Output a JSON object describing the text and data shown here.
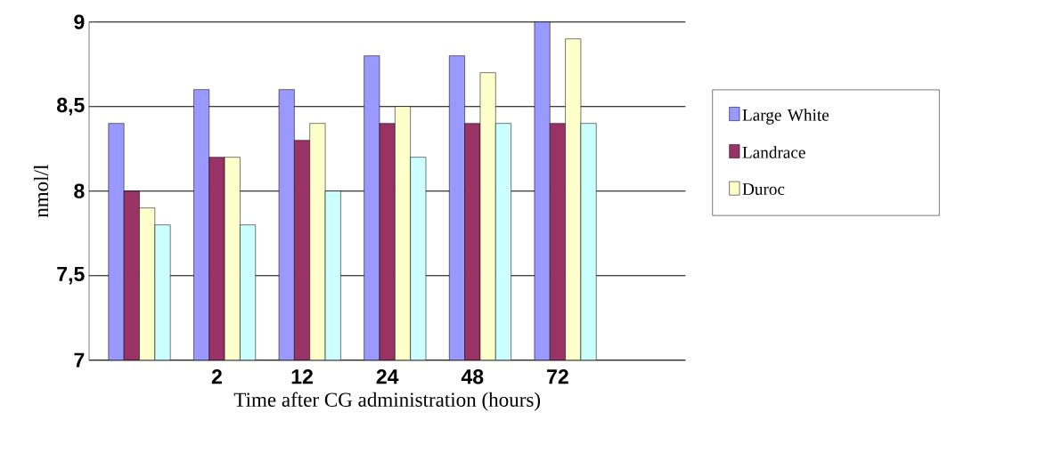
{
  "chart_data": {
    "type": "bar",
    "xlabel": "Time after CG administration (hours)",
    "ylabel": "nmol/l",
    "categories": [
      null,
      "2",
      "12",
      "24",
      "48",
      "72",
      null
    ],
    "series": [
      {
        "name": "Large White",
        "color": "#9999ff",
        "values": [
          8.4,
          8.6,
          8.6,
          8.8,
          8.8,
          9.0,
          null
        ]
      },
      {
        "name": "Landrace",
        "color": "#993366",
        "values": [
          8.0,
          8.2,
          8.3,
          8.4,
          8.4,
          8.4,
          null
        ]
      },
      {
        "name": "Duroc",
        "color": "#ffffcc",
        "values": [
          7.9,
          8.2,
          8.4,
          8.5,
          8.7,
          8.9,
          null
        ]
      },
      {
        "color": "#ccffff",
        "values": [
          7.8,
          7.8,
          8.0,
          8.2,
          8.4,
          8.4,
          null
        ]
      }
    ],
    "ylim": [
      7,
      9
    ],
    "yticks": [
      7,
      {
        "value": 7.5,
        "label": "7,5"
      },
      8,
      {
        "value": 8.5,
        "label": "8,5"
      },
      9
    ],
    "grid": "y",
    "legend": "right"
  }
}
